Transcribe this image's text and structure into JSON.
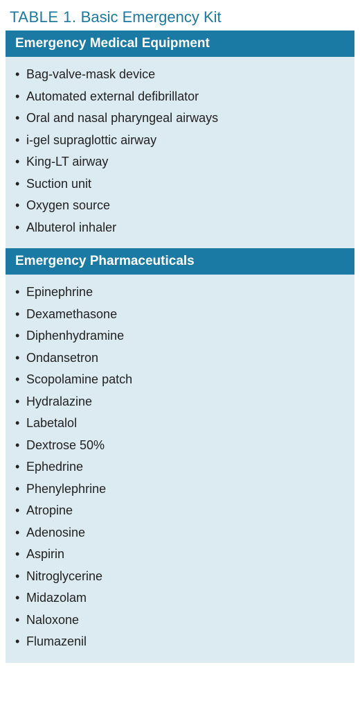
{
  "table": {
    "number_label": "TABLE 1.",
    "title": "Basic Emergency Kit",
    "colors": {
      "header_bg": "#1b7aa3",
      "header_text": "#ffffff",
      "body_bg": "#dceaf1",
      "caption_text": "#1b7aa3",
      "item_text": "#222222",
      "page_bg": "#ffffff"
    },
    "typography": {
      "caption_fontsize_pt": 16,
      "header_fontsize_pt": 14,
      "item_fontsize_pt": 13,
      "font_family": "sans-serif"
    },
    "sections": [
      {
        "header": "Emergency Medical Equipment",
        "items": [
          "Bag-valve-mask device",
          "Automated external defibrillator",
          "Oral and nasal pharyngeal airways",
          "i-gel supraglottic airway",
          "King-LT airway",
          "Suction unit",
          "Oxygen source",
          "Albuterol inhaler"
        ]
      },
      {
        "header": "Emergency Pharmaceuticals",
        "items": [
          "Epinephrine",
          "Dexamethasone",
          "Diphenhydramine",
          "Ondansetron",
          "Scopolamine patch",
          "Hydralazine",
          "Labetalol",
          "Dextrose 50%",
          "Ephedrine",
          "Phenylephrine",
          "Atropine",
          "Adenosine",
          "Aspirin",
          "Nitroglycerine",
          "Midazolam",
          "Naloxone",
          "Flumazenil"
        ]
      }
    ]
  }
}
